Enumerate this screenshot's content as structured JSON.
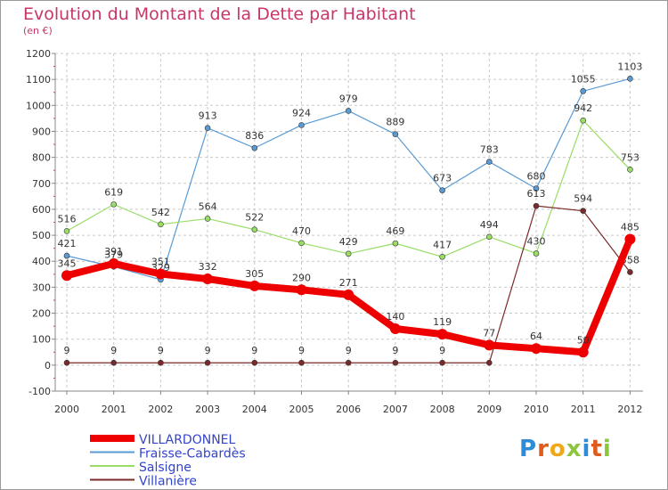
{
  "header": {
    "title": "Evolution du Montant de la Dette par Habitant",
    "unit": "(en €)"
  },
  "logo": {
    "text": "Proxiti",
    "letters": [
      "P",
      "r",
      "o",
      "x",
      "i",
      "t",
      "i"
    ],
    "colors": [
      "#2e8bd8",
      "#e05a1c",
      "#f0a818",
      "#8cc63f",
      "#2e8bd8",
      "#e05a1c",
      "#8cc63f"
    ]
  },
  "chart_data": {
    "type": "line",
    "x": [
      "2000",
      "2001",
      "2002",
      "2003",
      "2004",
      "2005",
      "2006",
      "2007",
      "2008",
      "2009",
      "2010",
      "2011",
      "2012"
    ],
    "ylim": [
      -100,
      1200
    ],
    "yticks": [
      -100,
      0,
      100,
      200,
      300,
      400,
      500,
      600,
      700,
      800,
      900,
      1000,
      1100,
      1200
    ],
    "grid": true,
    "legend_position": "bottom-left",
    "series": [
      {
        "name": "VILLARDONNEL",
        "color": "#ee0000",
        "values": [
          345,
          391,
          351,
          332,
          305,
          290,
          271,
          140,
          119,
          77,
          64,
          50,
          485
        ],
        "labels": [
          "345",
          "391",
          "351",
          "332",
          "305",
          "290",
          "271",
          "140",
          "119",
          "77",
          "64",
          "50",
          "485"
        ],
        "thick": true
      },
      {
        "name": "Fraisse-Cabardès",
        "color": "#5a9bd4",
        "values": [
          421,
          379,
          329,
          913,
          836,
          924,
          979,
          889,
          673,
          783,
          680,
          1055,
          1103
        ],
        "labels": [
          "421",
          "379",
          "329",
          "913",
          "836",
          "924",
          "979",
          "889",
          "673",
          "783",
          "680",
          "1055",
          "1103"
        ],
        "thick": false
      },
      {
        "name": "Salsigne",
        "color": "#99dd66",
        "values": [
          516,
          619,
          542,
          564,
          522,
          470,
          429,
          469,
          417,
          494,
          430,
          942,
          753
        ],
        "labels": [
          "516",
          "619",
          "542",
          "564",
          "522",
          "470",
          "429",
          "469",
          "417",
          "494",
          "430",
          "942",
          "753"
        ],
        "thick": false
      },
      {
        "name": "Villanière",
        "color": "#7a2a2a",
        "values": [
          9,
          9,
          9,
          9,
          9,
          9,
          9,
          9,
          9,
          9,
          613,
          594,
          358
        ],
        "labels": [
          "9",
          "9",
          "9",
          "9",
          "9",
          "9",
          "9",
          "9",
          "9",
          "",
          "613",
          "594",
          "358"
        ],
        "thick": false
      }
    ]
  }
}
